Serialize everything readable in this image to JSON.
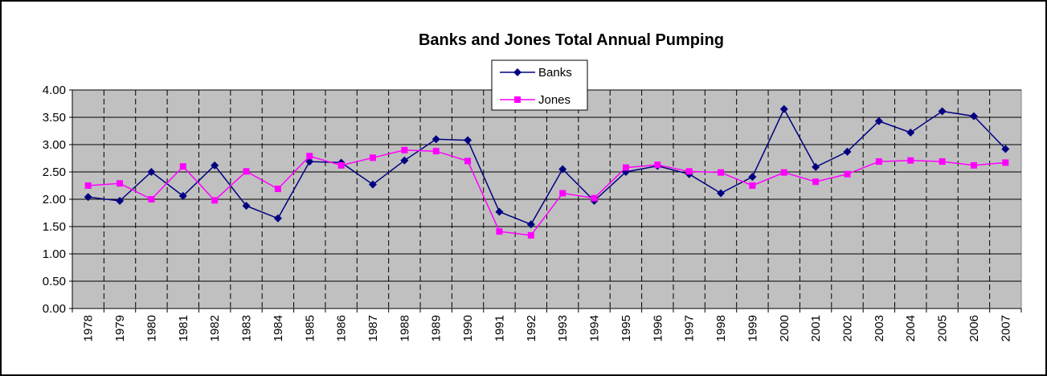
{
  "chart_data": {
    "type": "line",
    "title": "Banks and Jones Total Annual Pumping",
    "xlabel": "",
    "ylabel": "",
    "categories": [
      "1978",
      "1979",
      "1980",
      "1981",
      "1982",
      "1983",
      "1984",
      "1985",
      "1986",
      "1987",
      "1988",
      "1989",
      "1990",
      "1991",
      "1992",
      "1993",
      "1994",
      "1995",
      "1996",
      "1997",
      "1998",
      "1999",
      "2000",
      "2001",
      "2002",
      "2003",
      "2004",
      "2005",
      "2006",
      "2007"
    ],
    "ylim": [
      0,
      4
    ],
    "yticks": [
      "0.00",
      "0.50",
      "1.00",
      "1.50",
      "2.00",
      "2.50",
      "3.00",
      "3.50",
      "4.00"
    ],
    "grid": true,
    "legend": "top-center",
    "plot_background": "#c0c0c0",
    "series": [
      {
        "name": "Banks",
        "color": "#000080",
        "marker": "diamond",
        "values": [
          2.04,
          1.97,
          2.5,
          2.06,
          2.62,
          1.88,
          1.65,
          2.69,
          2.67,
          2.27,
          2.71,
          3.1,
          3.08,
          1.77,
          1.54,
          2.55,
          1.97,
          2.5,
          2.61,
          2.46,
          2.11,
          2.41,
          3.65,
          2.59,
          2.87,
          3.43,
          3.22,
          3.61,
          3.52,
          2.92
        ]
      },
      {
        "name": "Jones",
        "color": "#ff00ff",
        "marker": "square",
        "values": [
          2.25,
          2.29,
          2.0,
          2.6,
          1.98,
          2.51,
          2.19,
          2.79,
          2.62,
          2.76,
          2.9,
          2.88,
          2.7,
          1.41,
          1.34,
          2.11,
          2.02,
          2.58,
          2.63,
          2.51,
          2.49,
          2.25,
          2.49,
          2.32,
          2.46,
          2.69,
          2.71,
          2.69,
          2.62,
          2.67
        ]
      }
    ]
  }
}
